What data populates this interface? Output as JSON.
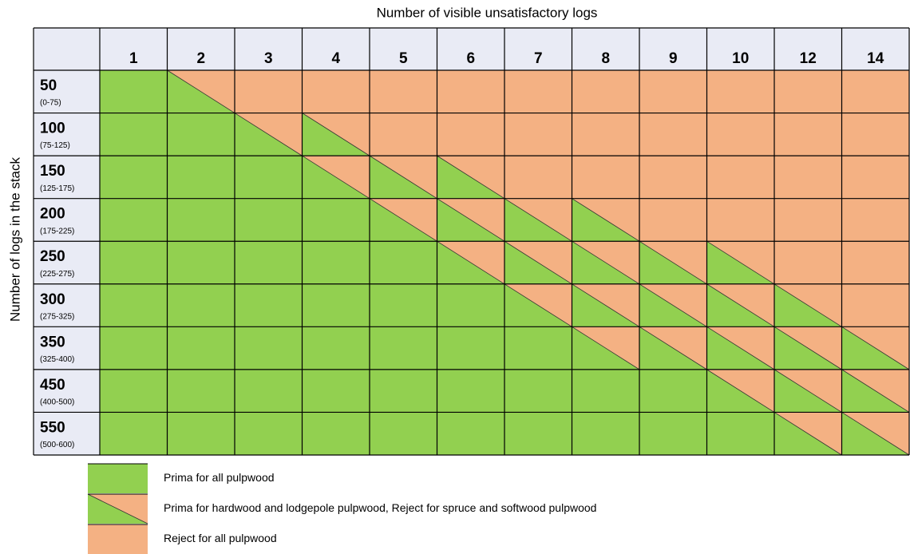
{
  "column_title": "Number of visible unsatisfactory logs",
  "row_title": "Number of logs in the stack",
  "columns": [
    "1",
    "2",
    "3",
    "4",
    "5",
    "6",
    "7",
    "8",
    "9",
    "10",
    "12",
    "14"
  ],
  "rows": [
    {
      "label": "50",
      "range": "(0-75)",
      "cells": [
        0,
        1,
        2,
        2,
        2,
        2,
        2,
        2,
        2,
        2,
        2,
        2
      ]
    },
    {
      "label": "100",
      "range": "(75-125)",
      "cells": [
        0,
        0,
        1,
        1,
        2,
        2,
        2,
        2,
        2,
        2,
        2,
        2
      ]
    },
    {
      "label": "150",
      "range": "(125-175)",
      "cells": [
        0,
        0,
        0,
        1,
        1,
        1,
        2,
        2,
        2,
        2,
        2,
        2
      ]
    },
    {
      "label": "200",
      "range": "(175-225)",
      "cells": [
        0,
        0,
        0,
        0,
        1,
        1,
        1,
        1,
        2,
        2,
        2,
        2
      ]
    },
    {
      "label": "250",
      "range": "(225-275)",
      "cells": [
        0,
        0,
        0,
        0,
        0,
        1,
        1,
        1,
        1,
        1,
        2,
        2
      ]
    },
    {
      "label": "300",
      "range": "(275-325)",
      "cells": [
        0,
        0,
        0,
        0,
        0,
        0,
        1,
        1,
        1,
        1,
        1,
        2
      ]
    },
    {
      "label": "350",
      "range": "(325-400)",
      "cells": [
        0,
        0,
        0,
        0,
        0,
        0,
        0,
        1,
        1,
        1,
        1,
        1
      ]
    },
    {
      "label": "450",
      "range": "(400-500)",
      "cells": [
        0,
        0,
        0,
        0,
        0,
        0,
        0,
        0,
        0,
        1,
        1,
        1
      ]
    },
    {
      "label": "550",
      "range": "(500-600)",
      "cells": [
        0,
        0,
        0,
        0,
        0,
        0,
        0,
        0,
        0,
        0,
        1,
        1
      ]
    }
  ],
  "legend": [
    {
      "label": "Prima for all pulpwood",
      "color": "#92d050"
    },
    {
      "label": "Prima for hardwood and lodgepole pulpwood, Reject for spruce and softwood pulpwood",
      "color": "split"
    },
    {
      "label": "Reject for all pulpwood",
      "color": "#f4b183"
    }
  ]
}
